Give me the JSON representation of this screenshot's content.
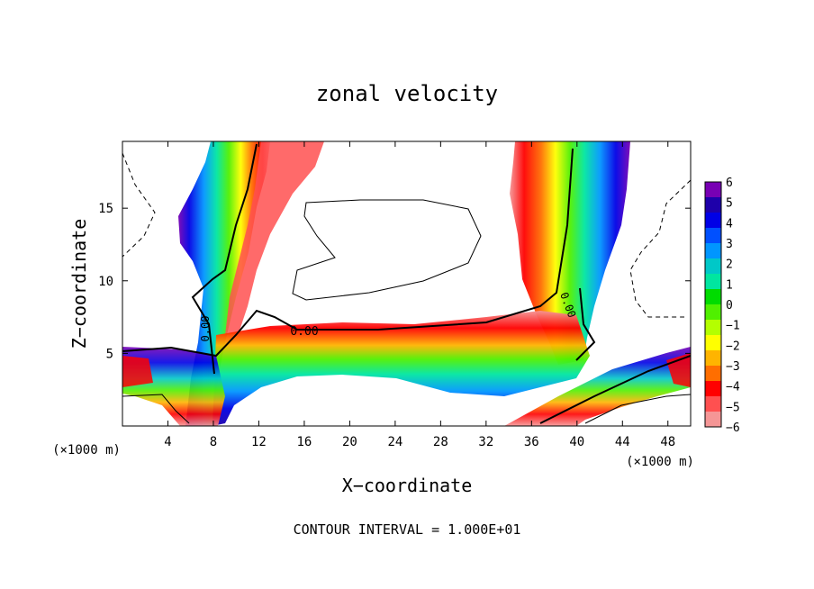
{
  "chart_data": {
    "type": "heatmap",
    "title": "zonal velocity",
    "xlabel": "X−coordinate",
    "ylabel": "Z−coordinate",
    "x_unit_left": "(×1000 m)",
    "x_unit_right": "(×1000 m)",
    "footer": "CONTOUR INTERVAL = 1.000E+01",
    "xlim": [
      0,
      50
    ],
    "ylim": [
      0,
      19.6
    ],
    "x_ticks": [
      4,
      8,
      12,
      16,
      20,
      24,
      28,
      32,
      36,
      40,
      44,
      48
    ],
    "y_ticks": [
      5,
      10,
      15
    ],
    "colorbar": {
      "min": -6,
      "max": 6,
      "tick_labels": [
        "6",
        "5",
        "4",
        "3",
        "2",
        "1",
        "0",
        "−1",
        "−2",
        "−3",
        "−4",
        "−5",
        "−6"
      ],
      "colors": [
        "#f59696",
        "#ff5050",
        "#ff0000",
        "#ff6e00",
        "#ffb400",
        "#ffff00",
        "#b4ff00",
        "#50f000",
        "#00dc00",
        "#00e6a0",
        "#00c8c8",
        "#0096ff",
        "#0050ff",
        "#0000e6",
        "#1e00aa",
        "#7800b4"
      ]
    },
    "contour_labels": [
      "0.00",
      "0.00",
      "0.00"
    ]
  }
}
